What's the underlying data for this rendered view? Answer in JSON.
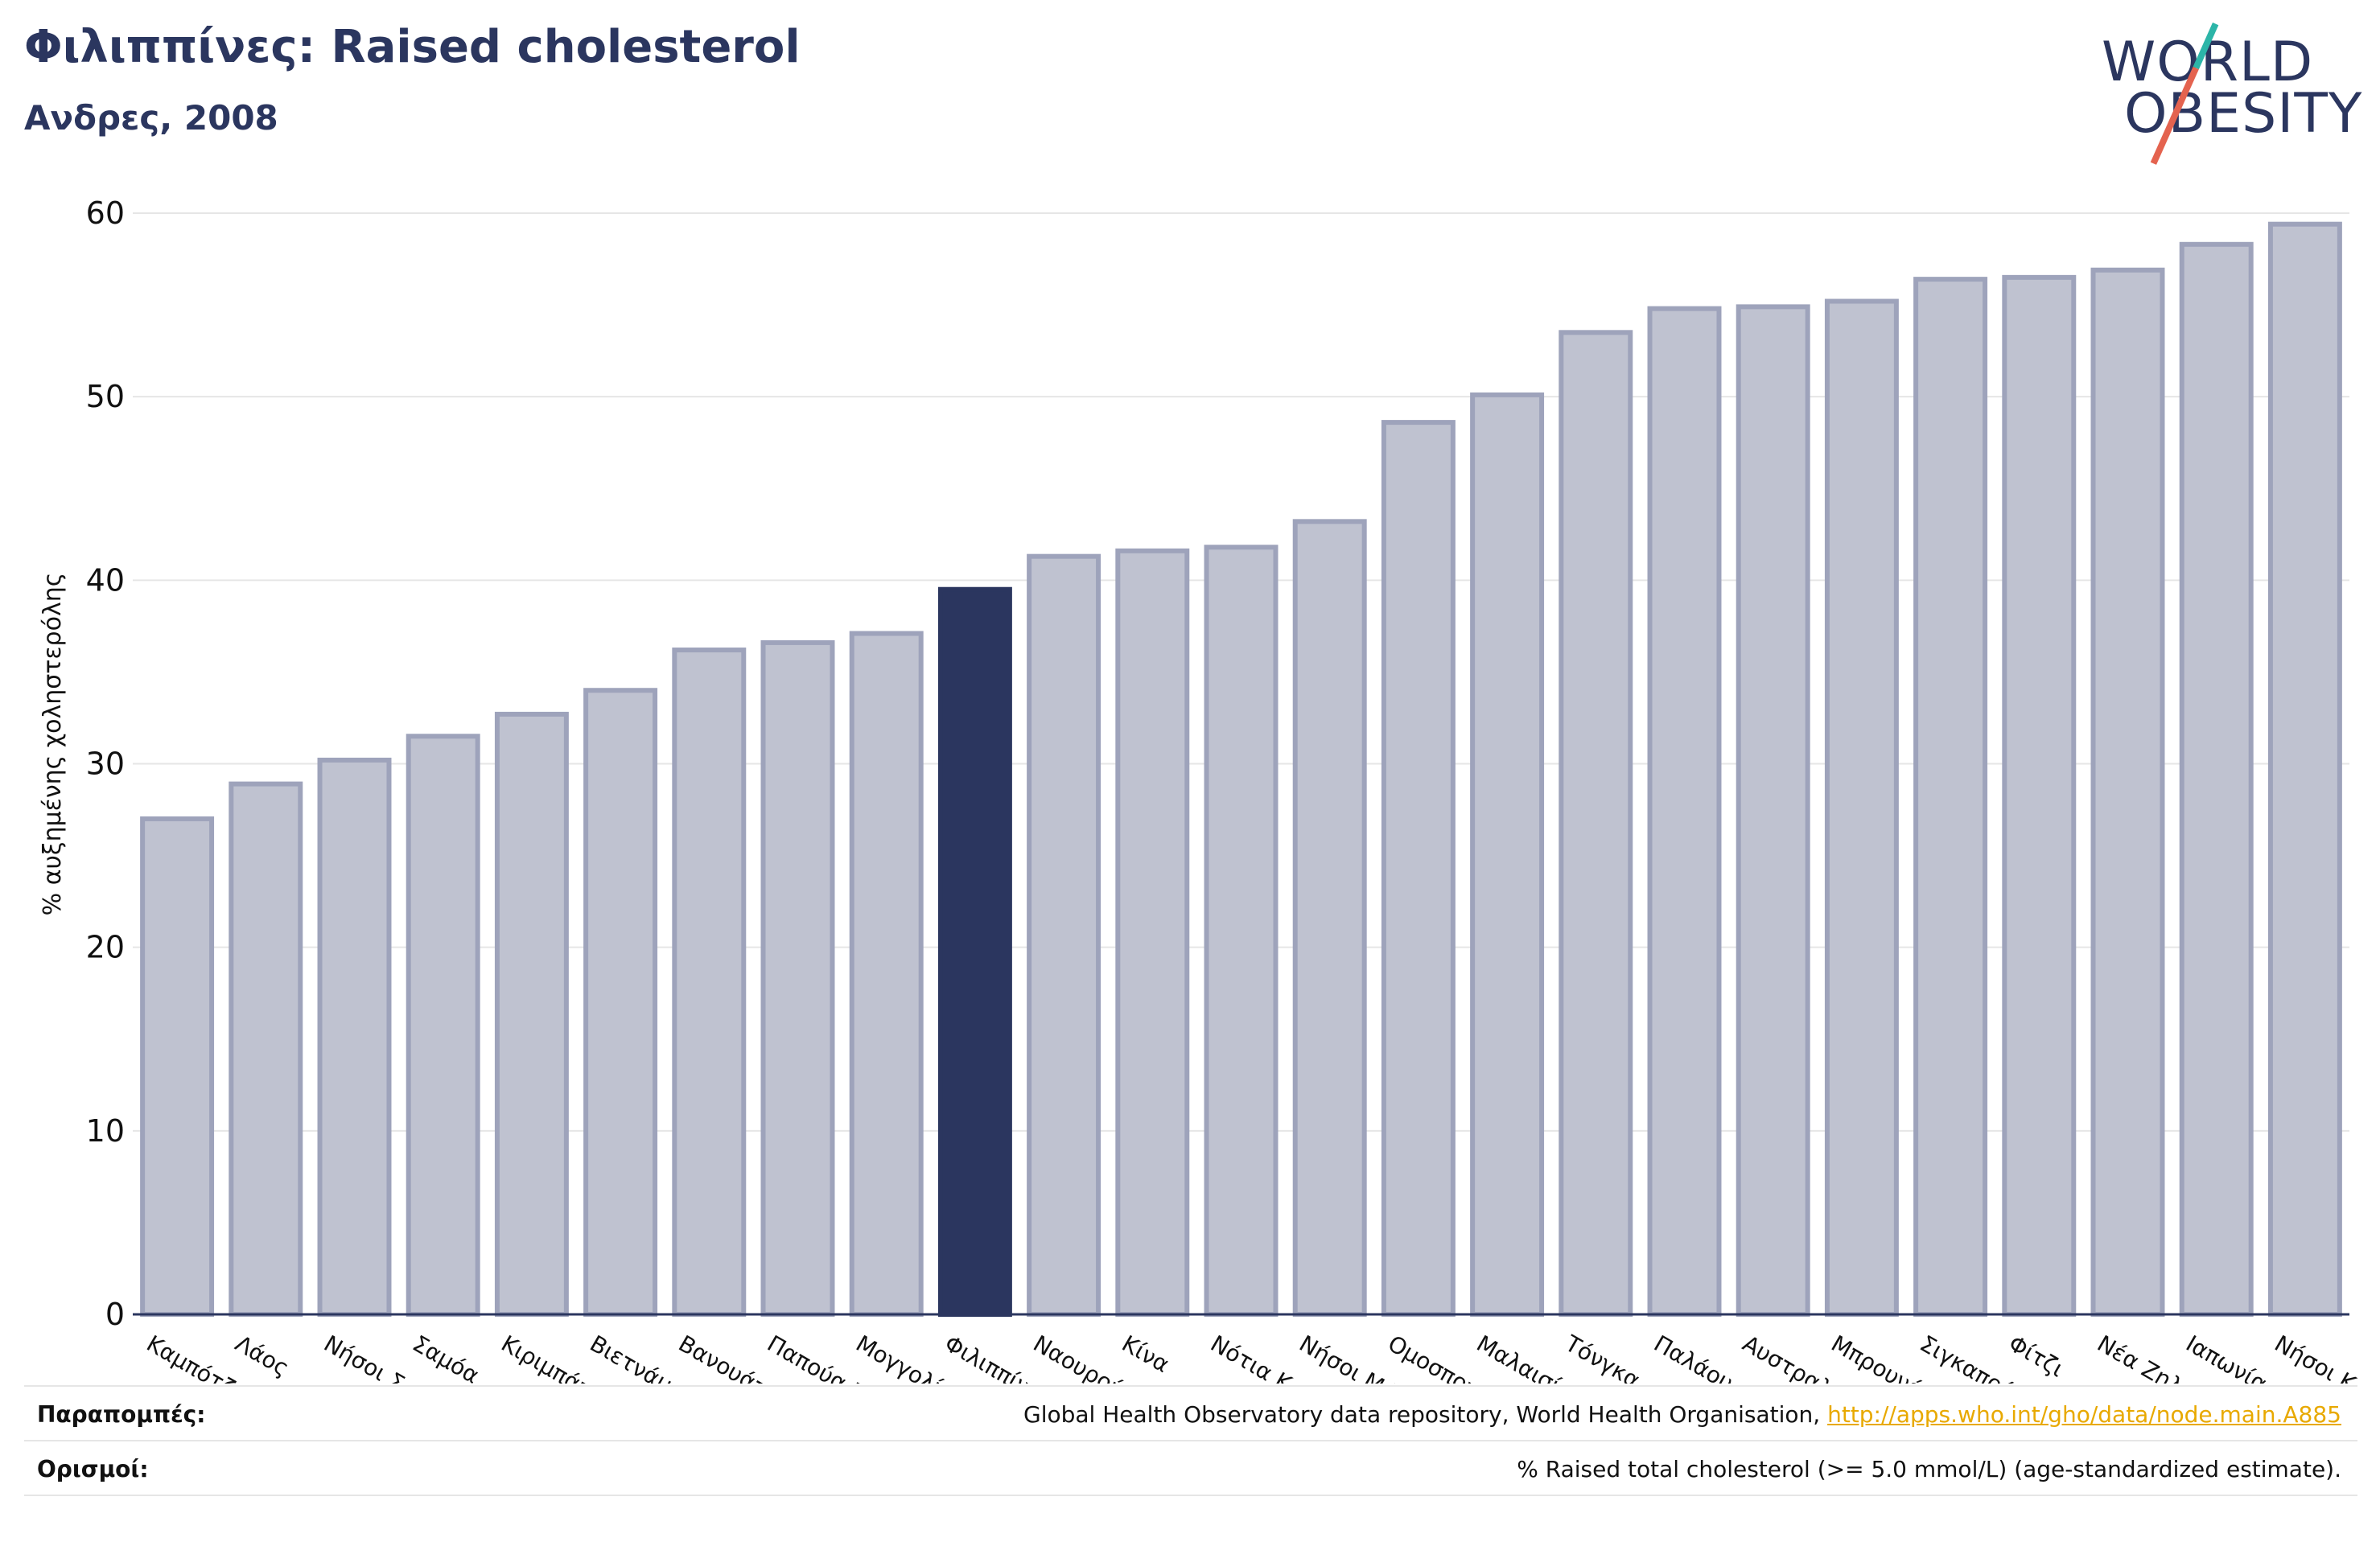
{
  "header": {
    "title": "Φιλιππίνες: Raised cholesterol",
    "subtitle": "Ανδρες, 2008"
  },
  "logo": {
    "line1": "WORLD",
    "line2": "OBESITY",
    "text_color": "#2b365f",
    "slash_colors": [
      "#2cb5a8",
      "#e4634f"
    ]
  },
  "footer": {
    "sources_label": "Παραπομπές:",
    "sources_text": "Global Health Observatory data repository, World Health Organisation, ",
    "sources_link": "http://apps.who.int/gho/data/node.main.A885",
    "definitions_label": "Ορισμοί:",
    "definitions_text": "% Raised total cholesterol (>= 5.0 mmol/L) (age-standardized estimate)."
  },
  "colors": {
    "bar_default": "#bfc2d0",
    "bar_border": "#9ea3bb",
    "bar_highlight": "#2b365f",
    "grid": "#e6e6e6",
    "axis": "#2b365f"
  },
  "chart_data": {
    "type": "bar",
    "title": "Φιλιππίνες: Raised cholesterol",
    "subtitle": "Ανδρες, 2008",
    "xlabel": "",
    "ylabel": "% αυξημένης χοληστερόλης",
    "ylim": [
      0,
      60
    ],
    "yticks": [
      0,
      10,
      20,
      30,
      40,
      50,
      60
    ],
    "grid": true,
    "highlight": "Φιλιππίνες",
    "categories": [
      "Καμπότζη",
      "Λάος",
      "Νήσοι Σολομώντα",
      "Σαμόα",
      "Κιριμπάτι",
      "Βιετνάμ",
      "Βανουάτου",
      "Παπούα Νέα Γουινέα",
      "Μογγολία",
      "Φιλιππίνες",
      "Ναουρού",
      "Κίνα",
      "Νότια Κορέα",
      "Νήσοι Μάρσαλ",
      "Ομοσπονδιακά Κράτη της Μικρονησίας",
      "Μαλαισία",
      "Τόνγκα",
      "Παλάου",
      "Αυστραλία",
      "Μπρουνέι Νταρ-Ελ-Σαλάμ",
      "Σιγκαπούρη",
      "Φίτζι",
      "Νέα Ζηλανδία",
      "Ιαπωνία",
      "Νήσοι Κουκ"
    ],
    "values": [
      27.0,
      28.9,
      30.2,
      31.5,
      32.7,
      34.0,
      36.2,
      36.6,
      37.1,
      39.5,
      41.3,
      41.6,
      41.8,
      43.2,
      48.6,
      50.1,
      53.5,
      54.8,
      54.9,
      55.2,
      56.4,
      56.5,
      56.9,
      58.3,
      59.4
    ]
  }
}
